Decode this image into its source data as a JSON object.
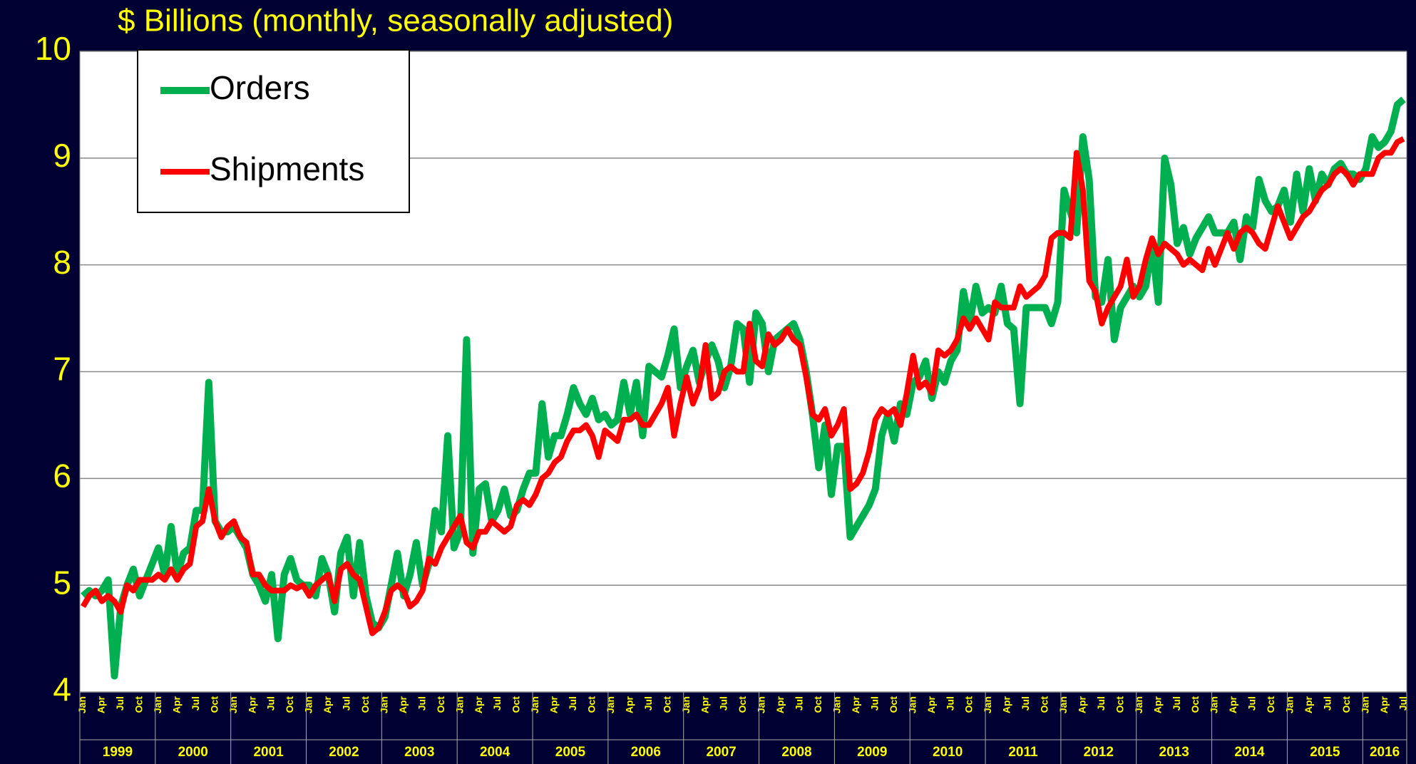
{
  "chart_data": {
    "type": "line",
    "title": "$ Billions (monthly, seasonally adjusted)",
    "categories": [
      "Jan",
      null,
      null,
      "Apr",
      null,
      null,
      "Jul",
      null,
      null,
      "Oct",
      null,
      null,
      "Jan",
      null,
      null,
      "Apr",
      null,
      null,
      "Jul",
      null,
      null,
      "Oct",
      null,
      null,
      "Jan",
      null,
      null,
      "Apr",
      null,
      null,
      "Jul",
      null,
      null,
      "Oct",
      null,
      null,
      "Jan",
      null,
      null,
      "Apr",
      null,
      null,
      "Jul",
      null,
      null,
      "Oct",
      null,
      null,
      "Jan",
      null,
      null,
      "Apr",
      null,
      null,
      "Jul",
      null,
      null,
      "Oct",
      null,
      null,
      "Jan",
      null,
      null,
      "Apr",
      null,
      null,
      "Jul",
      null,
      null,
      "Oct",
      null,
      null,
      "Jan",
      null,
      null,
      "Apr",
      null,
      null,
      "Jul",
      null,
      null,
      "Oct",
      null,
      null,
      "Jan",
      null,
      null,
      "Apr",
      null,
      null,
      "Jul",
      null,
      null,
      "Oct",
      null,
      null,
      "Jan",
      null,
      null,
      "Apr",
      null,
      null,
      "Jul",
      null,
      null,
      "Oct",
      null,
      null,
      "Jan",
      null,
      null,
      "Apr",
      null,
      null,
      "Jul",
      null,
      null,
      "Oct",
      null,
      null,
      "Jan",
      null,
      null,
      "Apr",
      null,
      null,
      "Jul",
      null,
      null,
      "Oct",
      null,
      null,
      "Jan",
      null,
      null,
      "Apr",
      null,
      null,
      "Jul",
      null,
      null,
      "Oct",
      null,
      null,
      "Jan",
      null,
      null,
      "Apr",
      null,
      null,
      "Jul",
      null,
      null,
      "Oct",
      null,
      null,
      "Jan",
      null,
      null,
      "Apr",
      null,
      null,
      "Jul",
      null,
      null,
      "Oct",
      null,
      null,
      "Jan",
      null,
      null,
      "Apr",
      null,
      null,
      "Jul",
      null,
      null,
      "Oct",
      null,
      null,
      "Jan",
      null,
      null,
      "Apr",
      null,
      null,
      "Jul",
      null,
      null,
      "Oct",
      null,
      null,
      "Jan",
      null,
      null,
      "Apr",
      null,
      null,
      "Jul",
      null,
      null,
      "Oct",
      null,
      null,
      "Jan",
      null,
      null,
      "Apr",
      null,
      null,
      "Jul"
    ],
    "years": [
      "1999",
      "2000",
      "2001",
      "2002",
      "2003",
      "2004",
      "2005",
      "2006",
      "2007",
      "2008",
      "2009",
      "2010",
      "2011",
      "2012",
      "2013",
      "2014",
      "2015",
      "2016"
    ],
    "series": [
      {
        "name": "Orders",
        "color": "#00b050",
        "values": [
          4.9,
          4.95,
          4.9,
          4.95,
          5.05,
          4.15,
          4.8,
          5.0,
          5.15,
          4.9,
          5.05,
          5.2,
          5.35,
          5.1,
          5.55,
          5.1,
          5.3,
          5.35,
          5.7,
          5.7,
          6.9,
          5.6,
          5.5,
          5.5,
          5.55,
          5.45,
          5.35,
          5.1,
          5.0,
          4.85,
          5.1,
          4.5,
          5.1,
          5.25,
          5.05,
          5.0,
          5.0,
          4.9,
          5.25,
          5.1,
          4.75,
          5.3,
          5.45,
          4.9,
          5.4,
          4.9,
          4.65,
          4.6,
          4.7,
          5.0,
          5.3,
          4.9,
          5.1,
          5.4,
          5.0,
          5.2,
          5.7,
          5.5,
          6.4,
          5.35,
          5.5,
          7.3,
          5.3,
          5.9,
          5.95,
          5.6,
          5.7,
          5.9,
          5.65,
          5.7,
          5.9,
          6.05,
          6.05,
          6.7,
          6.2,
          6.4,
          6.4,
          6.6,
          6.85,
          6.7,
          6.6,
          6.75,
          6.55,
          6.6,
          6.5,
          6.55,
          6.9,
          6.6,
          6.9,
          6.4,
          7.05,
          7.0,
          6.95,
          7.15,
          7.4,
          6.85,
          7.05,
          7.2,
          6.9,
          7.1,
          7.25,
          7.1,
          6.85,
          7.05,
          7.45,
          7.4,
          6.9,
          7.55,
          7.45,
          7.0,
          7.3,
          7.35,
          7.4,
          7.45,
          7.3,
          7.0,
          6.6,
          6.1,
          6.5,
          5.85,
          6.3,
          6.3,
          5.45,
          5.55,
          5.65,
          5.75,
          5.9,
          6.4,
          6.6,
          6.35,
          6.7,
          6.6,
          6.9,
          6.95,
          7.1,
          6.75,
          7.0,
          6.9,
          7.1,
          7.2,
          7.75,
          7.45,
          7.8,
          7.55,
          7.6,
          7.55,
          7.8,
          7.45,
          7.4,
          6.7,
          7.6,
          7.6,
          7.6,
          7.6,
          7.45,
          7.65,
          8.7,
          8.5,
          8.3,
          9.2,
          8.8,
          7.7,
          7.65,
          8.05,
          7.3,
          7.6,
          7.7,
          7.8,
          7.7,
          7.8,
          8.2,
          7.65,
          9.0,
          8.75,
          8.2,
          8.35,
          8.1,
          8.25,
          8.35,
          8.45,
          8.3,
          8.3,
          8.3,
          8.4,
          8.05,
          8.45,
          8.35,
          8.8,
          8.6,
          8.5,
          8.55,
          8.7,
          8.4,
          8.85,
          8.5,
          8.9,
          8.6,
          8.85,
          8.75,
          8.9,
          8.95,
          8.85,
          8.85,
          8.8,
          8.9,
          9.2,
          9.1,
          9.15,
          9.25,
          9.5,
          9.55
        ]
      },
      {
        "name": "Shipments",
        "color": "#ff0000",
        "values": [
          4.8,
          4.9,
          4.95,
          4.85,
          4.9,
          4.85,
          4.75,
          5.0,
          4.95,
          5.05,
          5.05,
          5.05,
          5.1,
          5.05,
          5.15,
          5.05,
          5.15,
          5.2,
          5.55,
          5.6,
          5.9,
          5.6,
          5.45,
          5.55,
          5.6,
          5.45,
          5.4,
          5.1,
          5.1,
          5.0,
          4.95,
          4.95,
          4.95,
          5.0,
          4.97,
          5.0,
          4.9,
          5.0,
          5.05,
          5.1,
          4.85,
          5.15,
          5.2,
          5.1,
          5.05,
          4.8,
          4.55,
          4.6,
          4.75,
          4.95,
          5.0,
          4.95,
          4.8,
          4.85,
          4.95,
          5.25,
          5.2,
          5.35,
          5.45,
          5.55,
          5.65,
          5.4,
          5.35,
          5.5,
          5.5,
          5.6,
          5.55,
          5.5,
          5.55,
          5.75,
          5.8,
          5.75,
          5.85,
          6.0,
          6.05,
          6.15,
          6.2,
          6.35,
          6.45,
          6.45,
          6.5,
          6.4,
          6.2,
          6.45,
          6.4,
          6.35,
          6.55,
          6.55,
          6.6,
          6.5,
          6.5,
          6.6,
          6.7,
          6.85,
          6.4,
          6.7,
          6.95,
          6.7,
          6.85,
          7.25,
          6.75,
          6.8,
          7.0,
          7.05,
          7.0,
          7.0,
          7.45,
          7.1,
          7.05,
          7.35,
          7.25,
          7.3,
          7.4,
          7.3,
          7.25,
          6.95,
          6.6,
          6.55,
          6.65,
          6.4,
          6.5,
          6.65,
          5.9,
          5.95,
          6.05,
          6.25,
          6.55,
          6.65,
          6.6,
          6.65,
          6.5,
          6.8,
          7.15,
          6.85,
          6.9,
          6.8,
          7.2,
          7.15,
          7.2,
          7.3,
          7.5,
          7.4,
          7.5,
          7.4,
          7.3,
          7.65,
          7.6,
          7.6,
          7.6,
          7.8,
          7.7,
          7.75,
          7.8,
          7.9,
          8.25,
          8.3,
          8.3,
          8.25,
          9.05,
          8.7,
          7.85,
          7.75,
          7.45,
          7.6,
          7.7,
          7.8,
          8.05,
          7.7,
          7.8,
          8.05,
          8.25,
          8.1,
          8.2,
          8.15,
          8.1,
          8.0,
          8.05,
          8.0,
          7.95,
          8.15,
          8.0,
          8.15,
          8.3,
          8.15,
          8.3,
          8.35,
          8.3,
          8.2,
          8.15,
          8.35,
          8.55,
          8.4,
          8.25,
          8.35,
          8.45,
          8.5,
          8.6,
          8.7,
          8.75,
          8.85,
          8.9,
          8.85,
          8.75,
          8.85,
          8.85,
          8.85,
          9.0,
          9.05,
          9.05,
          9.15,
          9.18
        ]
      }
    ],
    "ylim": [
      4,
      10
    ],
    "yticks": [
      4,
      5,
      6,
      7,
      8,
      9,
      10
    ],
    "grid": true
  }
}
